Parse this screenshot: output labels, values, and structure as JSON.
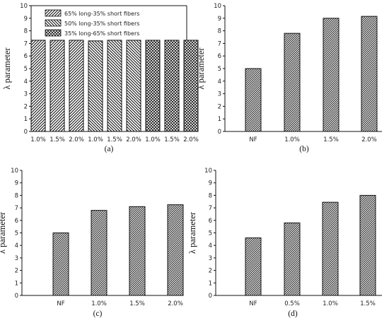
{
  "colors": {
    "bar_stroke": "#111111",
    "bar_fill": "#ffffff",
    "axis": "#111111"
  },
  "chart_data": [
    {
      "panel_label": "(a)",
      "type": "bar",
      "ylabel": "λ parameter",
      "ylim": [
        0,
        10
      ],
      "yticks": [
        "0",
        "1",
        "2",
        "3",
        "4",
        "5",
        "6",
        "7",
        "8",
        "9",
        "10"
      ],
      "categories": [
        "1.0%",
        "1.5%",
        "2.0%",
        "1.0%",
        "1.5%",
        "2.0%",
        "1.0%",
        "1.5%",
        "2.0%"
      ],
      "series": [
        {
          "name": "65% long-35% short fibers",
          "pattern": "diag-left",
          "values": [
            7.25,
            7.25,
            7.25,
            null,
            null,
            null,
            null,
            null,
            null
          ]
        },
        {
          "name": "50% long-35% short fibers",
          "pattern": "diag-right",
          "values": [
            null,
            null,
            null,
            7.2,
            7.25,
            7.25,
            null,
            null,
            null
          ]
        },
        {
          "name": "35% long-65% short fibers",
          "pattern": "cross",
          "values": [
            null,
            null,
            null,
            null,
            null,
            null,
            7.25,
            7.25,
            7.25
          ]
        }
      ],
      "legend_position": "top-left",
      "grid": false
    },
    {
      "panel_label": "(b)",
      "type": "bar",
      "ylabel": "λ parameter",
      "ylim": [
        0,
        10
      ],
      "yticks": [
        "0",
        "1",
        "2",
        "3",
        "4",
        "5",
        "6",
        "7",
        "8",
        "9",
        "10"
      ],
      "categories": [
        "NF",
        "1.0%",
        "1.5%",
        "2.0%"
      ],
      "values": [
        5.0,
        7.8,
        9.0,
        9.15
      ],
      "pattern": "dense",
      "grid": false
    },
    {
      "panel_label": "(c)",
      "type": "bar",
      "ylabel": "λ parameter",
      "ylim": [
        0,
        10
      ],
      "yticks": [
        "0",
        "1",
        "2",
        "3",
        "4",
        "5",
        "6",
        "7",
        "8",
        "9",
        "10"
      ],
      "categories": [
        "NF",
        "1.0%",
        "1.5%",
        "2.0%"
      ],
      "values": [
        5.0,
        6.8,
        7.1,
        7.25
      ],
      "pattern": "dense",
      "grid": false
    },
    {
      "panel_label": "(d)",
      "type": "bar",
      "ylabel": "λ parameter",
      "ylim": [
        0,
        10
      ],
      "yticks": [
        "0",
        "1",
        "2",
        "3",
        "4",
        "5",
        "6",
        "7",
        "8",
        "9",
        "10"
      ],
      "categories": [
        "NF",
        "0.5%",
        "1.0%",
        "1.5%"
      ],
      "values": [
        4.6,
        5.8,
        7.45,
        8.0
      ],
      "pattern": "dense",
      "grid": false
    }
  ]
}
